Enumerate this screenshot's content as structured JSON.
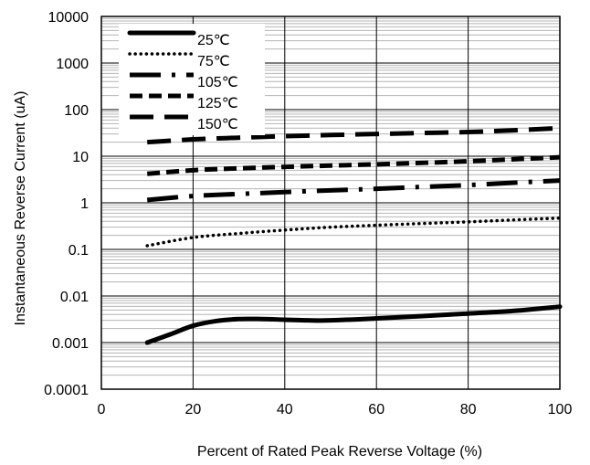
{
  "chart_data": {
    "type": "line",
    "xlabel": "Percent of Rated Peak Reverse Voltage (%)",
    "ylabel": "Instantaneous Reverse Current (uA)",
    "xlim": [
      0,
      100
    ],
    "ylim": [
      0.0001,
      10000
    ],
    "yscale": "log",
    "grid": true,
    "legend_position": "top-left",
    "x_ticks": [
      "0",
      "20",
      "40",
      "60",
      "80",
      "100"
    ],
    "y_ticks": [
      "0.0001",
      "0.001",
      "0.01",
      "0.1",
      "1",
      "10",
      "100",
      "1000",
      "10000"
    ],
    "series": [
      {
        "name": "25℃",
        "dash": "solid",
        "points": [
          [
            10,
            0.001
          ],
          [
            15,
            0.0015
          ],
          [
            20,
            0.0023
          ],
          [
            25,
            0.0029
          ],
          [
            30,
            0.0032
          ],
          [
            35,
            0.0032
          ],
          [
            40,
            0.0031
          ],
          [
            45,
            0.003
          ],
          [
            50,
            0.003
          ],
          [
            60,
            0.0033
          ],
          [
            70,
            0.0037
          ],
          [
            80,
            0.0042
          ],
          [
            90,
            0.0048
          ],
          [
            100,
            0.0059
          ]
        ]
      },
      {
        "name": "75℃",
        "dash": "dot",
        "points": [
          [
            10,
            0.12
          ],
          [
            20,
            0.18
          ],
          [
            30,
            0.22
          ],
          [
            40,
            0.26
          ],
          [
            50,
            0.3
          ],
          [
            60,
            0.33
          ],
          [
            70,
            0.36
          ],
          [
            80,
            0.39
          ],
          [
            90,
            0.43
          ],
          [
            100,
            0.47
          ]
        ]
      },
      {
        "name": "105℃",
        "dash": "dashdot",
        "points": [
          [
            10,
            1.15
          ],
          [
            20,
            1.4
          ],
          [
            30,
            1.55
          ],
          [
            40,
            1.7
          ],
          [
            50,
            1.85
          ],
          [
            60,
            2.0
          ],
          [
            70,
            2.2
          ],
          [
            80,
            2.4
          ],
          [
            90,
            2.7
          ],
          [
            100,
            3.0
          ]
        ]
      },
      {
        "name": "125℃",
        "dash": "shortdash",
        "points": [
          [
            10,
            4.2
          ],
          [
            20,
            5.0
          ],
          [
            30,
            5.5
          ],
          [
            40,
            5.9
          ],
          [
            50,
            6.3
          ],
          [
            60,
            6.7
          ],
          [
            70,
            7.2
          ],
          [
            80,
            7.8
          ],
          [
            90,
            8.6
          ],
          [
            100,
            9.5
          ]
        ]
      },
      {
        "name": "150℃",
        "dash": "longdash",
        "points": [
          [
            10,
            20
          ],
          [
            20,
            23
          ],
          [
            30,
            25
          ],
          [
            40,
            27
          ],
          [
            50,
            28.5
          ],
          [
            60,
            30
          ],
          [
            70,
            31.5
          ],
          [
            80,
            33
          ],
          [
            90,
            36
          ],
          [
            100,
            40
          ]
        ]
      }
    ]
  }
}
